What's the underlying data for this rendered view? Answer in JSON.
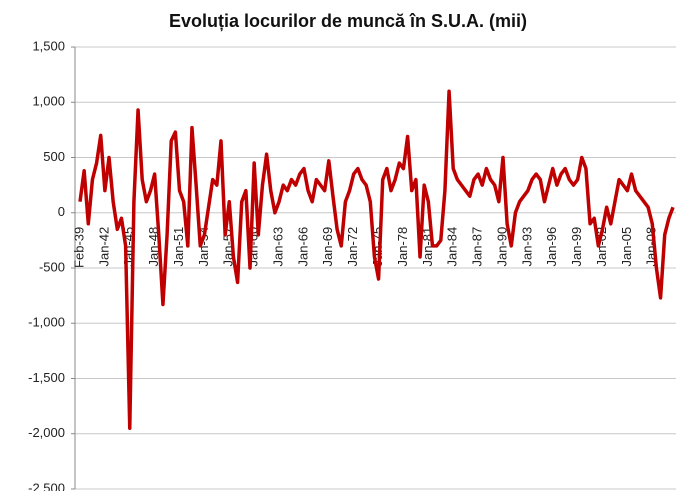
{
  "chart_data": {
    "type": "line",
    "title": "Evoluția locurilor de muncă în S.U.A. (mii)",
    "categories": [
      "Feb-39",
      null,
      null,
      null,
      null,
      null,
      "Jan-42",
      null,
      null,
      null,
      null,
      null,
      "Jan-45",
      null,
      null,
      null,
      null,
      null,
      "Jan-48",
      null,
      null,
      null,
      null,
      null,
      "Jan-51",
      null,
      null,
      null,
      null,
      null,
      "Jan-54",
      null,
      null,
      null,
      null,
      null,
      "Jan-57",
      null,
      null,
      null,
      null,
      null,
      "Jan-60",
      null,
      null,
      null,
      null,
      null,
      "Jan-63",
      null,
      null,
      null,
      null,
      null,
      "Jan-66",
      null,
      null,
      null,
      null,
      null,
      "Jan-69",
      null,
      null,
      null,
      null,
      null,
      "Jan-72",
      null,
      null,
      null,
      null,
      null,
      "Jan-75",
      null,
      null,
      null,
      null,
      null,
      "Jan-78",
      null,
      null,
      null,
      null,
      null,
      "Jan-81",
      null,
      null,
      null,
      null,
      null,
      "Jan-84",
      null,
      null,
      null,
      null,
      null,
      "Jan-87",
      null,
      null,
      null,
      null,
      null,
      "Jan-90",
      null,
      null,
      null,
      null,
      null,
      "Jan-93",
      null,
      null,
      null,
      null,
      null,
      "Jan-96",
      null,
      null,
      null,
      null,
      null,
      "Jan-99",
      null,
      null,
      null,
      null,
      null,
      "Jan-02",
      null,
      null,
      null,
      null,
      null,
      "Jan-05",
      null,
      null,
      null,
      null,
      null,
      "Jan-08",
      null,
      null,
      null,
      null,
      null
    ],
    "values": [
      100,
      380,
      -100,
      300,
      450,
      700,
      200,
      500,
      100,
      -150,
      -50,
      -300,
      -1950,
      100,
      930,
      300,
      100,
      200,
      350,
      -200,
      -830,
      -200,
      650,
      730,
      200,
      100,
      -300,
      770,
      250,
      -300,
      -200,
      50,
      300,
      250,
      650,
      -200,
      100,
      -400,
      -630,
      100,
      200,
      -500,
      450,
      -200,
      250,
      530,
      200,
      0,
      100,
      250,
      200,
      300,
      250,
      350,
      400,
      200,
      100,
      300,
      250,
      200,
      470,
      150,
      -150,
      -300,
      100,
      200,
      350,
      400,
      300,
      250,
      100,
      -400,
      -600,
      300,
      400,
      200,
      300,
      450,
      400,
      690,
      200,
      300,
      -400,
      250,
      100,
      -300,
      -300,
      -250,
      200,
      1100,
      400,
      300,
      250,
      200,
      150,
      300,
      350,
      250,
      400,
      300,
      250,
      100,
      500,
      -100,
      -300,
      0,
      100,
      150,
      200,
      300,
      350,
      300,
      100,
      250,
      400,
      250,
      350,
      400,
      300,
      250,
      300,
      500,
      400,
      -100,
      -50,
      -300,
      -150,
      50,
      -100,
      100,
      300,
      250,
      200,
      350,
      200,
      150,
      100,
      50,
      -100,
      -500,
      -770,
      -200,
      -50,
      50
    ],
    "color": "#c00000",
    "ylim": [
      -2500,
      1500
    ],
    "yticks": [
      {
        "value": -2500,
        "label": "-2,500"
      },
      {
        "value": -2000,
        "label": "-2,000"
      },
      {
        "value": -1500,
        "label": "-1,500"
      },
      {
        "value": -1000,
        "label": "-1,000"
      },
      -500,
      0,
      500,
      {
        "value": 1000,
        "label": "1,000"
      },
      {
        "value": 1500,
        "label": "1,500"
      }
    ],
    "grid": true
  }
}
